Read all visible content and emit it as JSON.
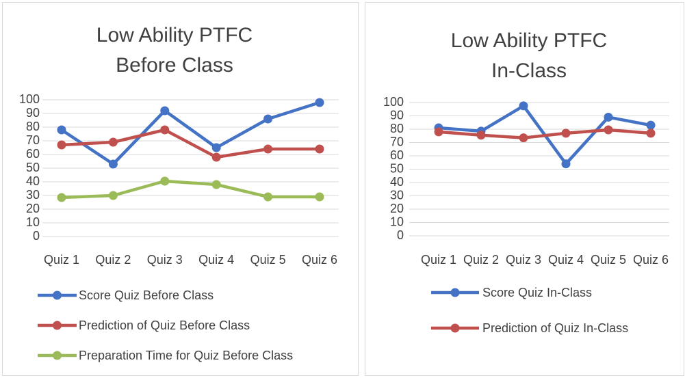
{
  "chart_data": [
    {
      "type": "line",
      "title": "Low Ability PTFC Before Class",
      "categories": [
        "Quiz 1",
        "Quiz 2",
        "Quiz 3",
        "Quiz 4",
        "Quiz 5",
        "Quiz 6"
      ],
      "series": [
        {
          "name": "Score Quiz Before Class",
          "color": "#4472c4",
          "values": [
            78,
            53,
            92,
            65,
            86,
            98
          ]
        },
        {
          "name": "Prediction of Quiz Before Class",
          "color": "#c0504d",
          "values": [
            67,
            69,
            78,
            58,
            64,
            64
          ]
        },
        {
          "name": "Preparation Time for Quiz Before Class",
          "color": "#9bbb59",
          "values": [
            28.5,
            30,
            40.5,
            38,
            29,
            29
          ]
        }
      ],
      "ylim": [
        0,
        100
      ],
      "yticks": [
        0,
        10,
        20,
        30,
        40,
        50,
        60,
        70,
        80,
        90,
        100
      ],
      "grid": true,
      "legend": "bottom"
    },
    {
      "type": "line",
      "title": "Low Ability PTFC In-Class",
      "categories": [
        "Quiz 1",
        "Quiz 2",
        "Quiz 3",
        "Quiz 4",
        "Quiz 5",
        "Quiz 6"
      ],
      "series": [
        {
          "name": "Score Quiz In-Class",
          "color": "#4472c4",
          "values": [
            81,
            78.5,
            97.5,
            54,
            89,
            83
          ]
        },
        {
          "name": "Prediction of Quiz In-Class",
          "color": "#c0504d",
          "values": [
            78,
            75.5,
            73.5,
            77,
            79.5,
            77
          ]
        }
      ],
      "ylim": [
        0,
        100
      ],
      "yticks": [
        0,
        10,
        20,
        30,
        40,
        50,
        60,
        70,
        80,
        90,
        100
      ],
      "grid": true,
      "legend": "bottom"
    }
  ]
}
